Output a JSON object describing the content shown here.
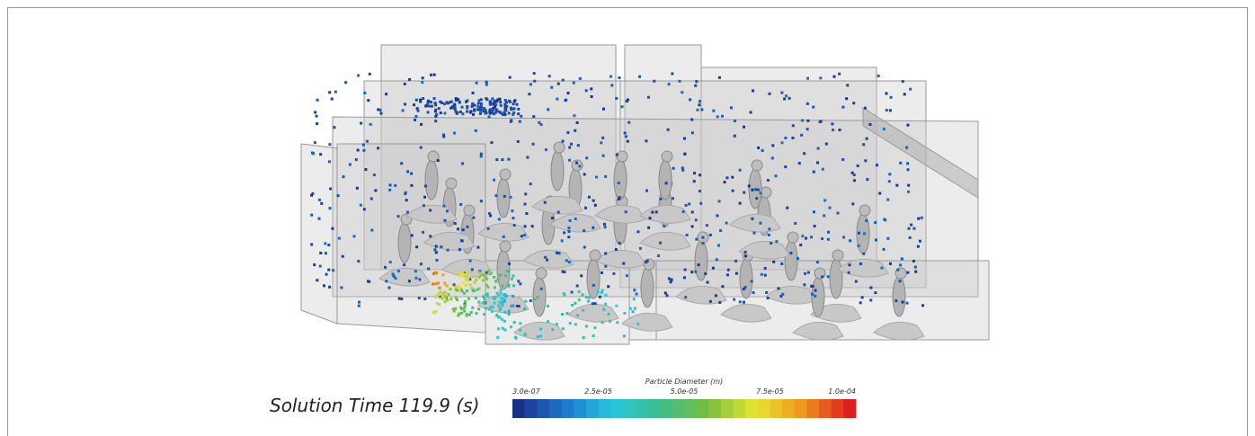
{
  "solution_time": "Solution Time 119.9 (s)",
  "colorbar": {
    "title": "Particle Diameter (m)",
    "ticks": [
      "3.0e-07",
      "2.5e-05",
      "5.0e-05",
      "7.5e-05",
      "1.0e-04"
    ]
  }
}
